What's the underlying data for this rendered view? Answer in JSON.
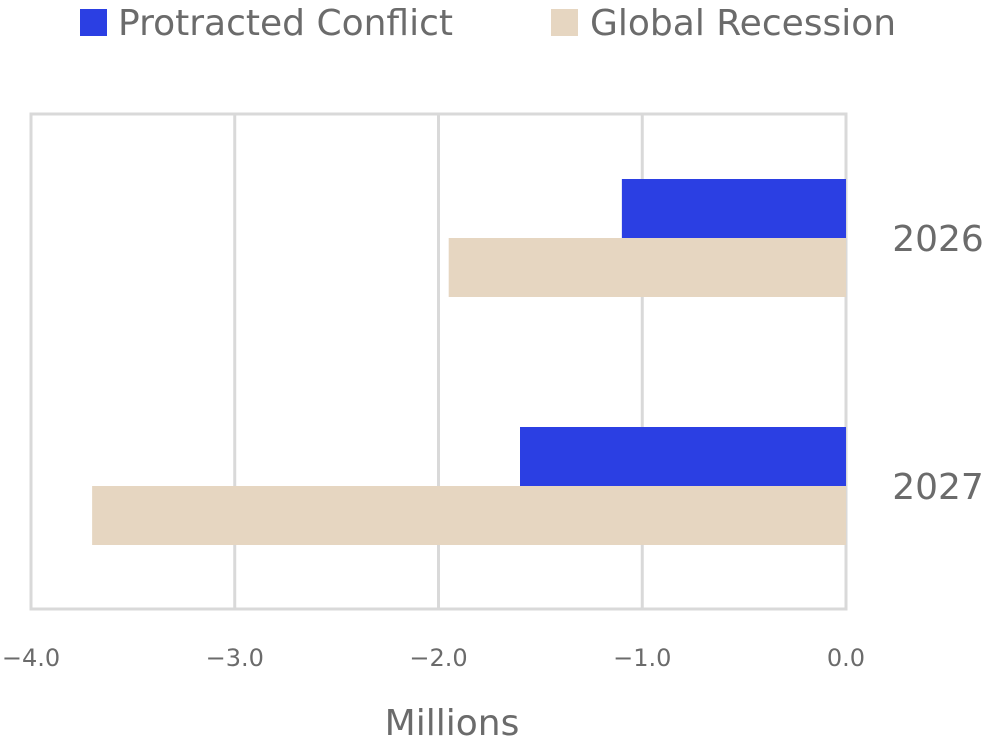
{
  "chart_data": {
    "type": "bar",
    "orientation": "horizontal",
    "title": "",
    "categories": [
      "2026",
      "2027"
    ],
    "series": [
      {
        "name": "Protracted Conflict",
        "color": "#2b3fe3",
        "values": [
          -1.1,
          -1.6
        ]
      },
      {
        "name": "Global Recession",
        "color": "#e6d6c1",
        "values": [
          -1.95,
          -3.7
        ]
      }
    ],
    "xlabel": "Millions",
    "ylabel": "",
    "xlim": [
      -4.0,
      0.0
    ],
    "xticks": [
      -4.0,
      -3.0,
      -2.0,
      -1.0,
      0.0
    ],
    "xtick_labels": [
      "−4.0",
      "−3.0",
      "−2.0",
      "−1.0",
      "0.0"
    ],
    "grid": true,
    "legend_position": "top"
  }
}
